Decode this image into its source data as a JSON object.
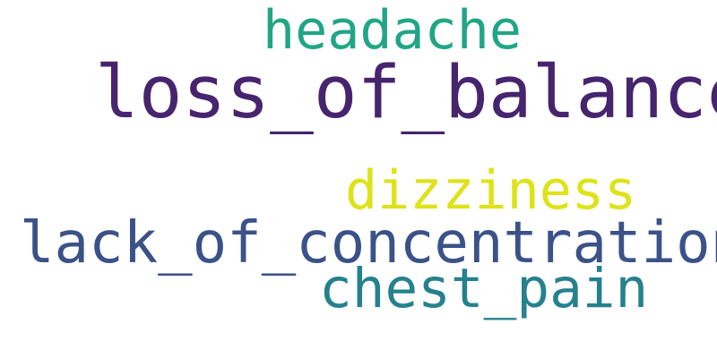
{
  "words": [
    {
      "text": "headache",
      "color": "#21a685"
    },
    {
      "text": "loss_of_balance",
      "color": "#46246e"
    },
    {
      "text": "dizziness",
      "color": "#dde318"
    },
    {
      "text": "lack_of_concentration",
      "color": "#3b5288"
    },
    {
      "text": "chest_pain",
      "color": "#26818e"
    }
  ]
}
